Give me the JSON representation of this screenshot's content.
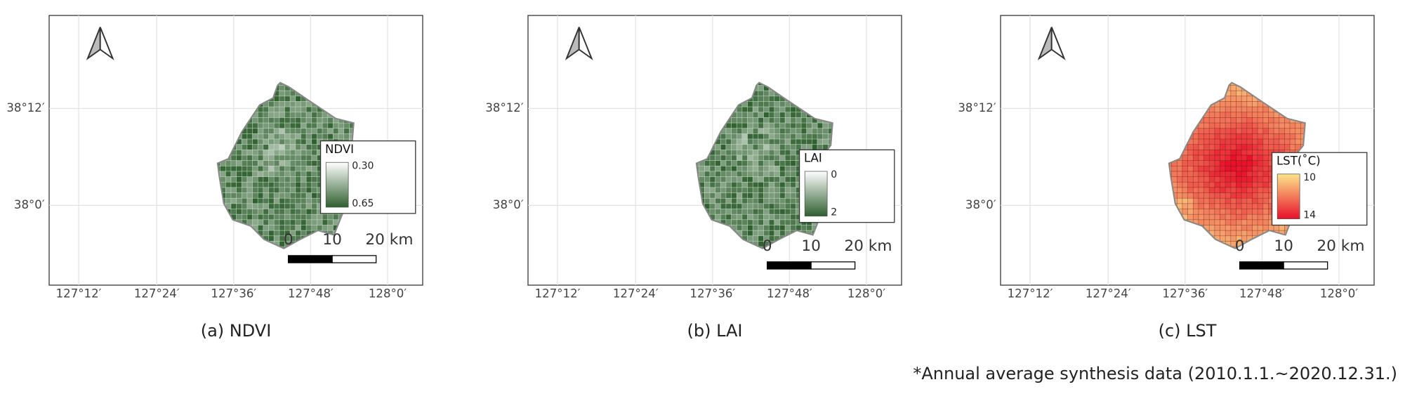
{
  "lon_labels": [
    "127°12′",
    "127°24′",
    "127°36′",
    "127°48′",
    "128°0′"
  ],
  "lat_labels": [
    "38°12′",
    "38°0′"
  ],
  "scale_bar": [
    "0",
    "10",
    "20 km"
  ],
  "panels": [
    {
      "caption": "(a) NDVI",
      "legend": {
        "title": "NDVI",
        "top": "0.30",
        "bottom": "0.65",
        "colors": [
          "#ffffff",
          "#2f5f2f"
        ]
      }
    },
    {
      "caption": "(b) LAI",
      "legend": {
        "title": "LAI",
        "top": "0",
        "bottom": "2",
        "colors": [
          "#ffffff",
          "#2f5f2f"
        ]
      }
    },
    {
      "caption": "(c) LST",
      "legend": {
        "title": "LST(˚C)",
        "top": "10",
        "bottom": "14",
        "colors": [
          "#fde58a",
          "#e8102a"
        ]
      }
    }
  ],
  "footnote": "*Annual average synthesis data (2010.1.1.~2020.12.31.)"
}
